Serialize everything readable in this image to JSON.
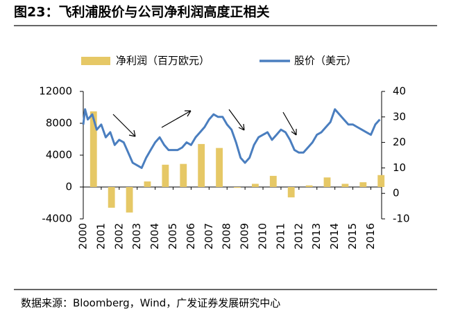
{
  "chart_data": {
    "type": "combo",
    "title": "图23：飞利浦股价与公司净利润高度正相关",
    "source": "数据来源：Bloomberg，Wind，广发证券发展研究中心",
    "xlim": [
      2000,
      2016.6
    ],
    "xticks": [
      2000,
      2001,
      2002,
      2003,
      2004,
      2005,
      2006,
      2007,
      2008,
      2009,
      2010,
      2011,
      2012,
      2013,
      2014,
      2015,
      2016
    ],
    "ylim": [
      -4000,
      12000
    ],
    "yticks": [
      -4000,
      0,
      4000,
      8000,
      12000
    ],
    "y2lim": [
      -10,
      40
    ],
    "y2ticks": [
      -10,
      0,
      10,
      20,
      30,
      40
    ],
    "series": [
      {
        "name": "净利润（百万欧元）",
        "type": "bar",
        "color": "#e6c866",
        "x": [
          2000,
          2001,
          2002,
          2003,
          2004,
          2005,
          2006,
          2007,
          2008,
          2009,
          2010,
          2011,
          2012,
          2013,
          2014,
          2015,
          2016
        ],
        "values": [
          9500,
          -2600,
          -3200,
          700,
          2800,
          2900,
          5400,
          4900,
          -100,
          400,
          1400,
          -1300,
          200,
          1200,
          400,
          600,
          1500
        ]
      },
      {
        "name": "股价（美元）",
        "type": "line",
        "axis": "y2",
        "color": "#4a7ebf",
        "x": [
          2000.0,
          2000.1,
          2000.25,
          2000.5,
          2000.75,
          2001.0,
          2001.25,
          2001.5,
          2001.75,
          2002.0,
          2002.25,
          2002.5,
          2002.75,
          2003.0,
          2003.25,
          2003.5,
          2003.75,
          2004.0,
          2004.25,
          2004.5,
          2004.75,
          2005.0,
          2005.25,
          2005.5,
          2005.75,
          2006.0,
          2006.25,
          2006.5,
          2006.75,
          2007.0,
          2007.25,
          2007.5,
          2007.75,
          2008.0,
          2008.25,
          2008.5,
          2008.75,
          2009.0,
          2009.25,
          2009.5,
          2009.75,
          2010.0,
          2010.25,
          2010.5,
          2010.75,
          2011.0,
          2011.25,
          2011.5,
          2011.75,
          2012.0,
          2012.25,
          2012.5,
          2012.75,
          2013.0,
          2013.25,
          2013.5,
          2013.75,
          2014.0,
          2014.25,
          2014.5,
          2014.75,
          2015.0,
          2015.25,
          2015.5,
          2015.75,
          2016.0,
          2016.25,
          2016.5
        ],
        "values": [
          27,
          33,
          29,
          31,
          25,
          27,
          22,
          24,
          19,
          21,
          20,
          16,
          12,
          11,
          10,
          14,
          17,
          20,
          22,
          19,
          17,
          17,
          17,
          18,
          20,
          19,
          22,
          24,
          26,
          29,
          31,
          30,
          30,
          27,
          25,
          20,
          14,
          12,
          14,
          19,
          22,
          23,
          24,
          21,
          23,
          25,
          24,
          21,
          17,
          16,
          16,
          18,
          20,
          23,
          24,
          26,
          28,
          33,
          31,
          29,
          27,
          27,
          26,
          25,
          24,
          23,
          27,
          29
        ]
      }
    ]
  }
}
